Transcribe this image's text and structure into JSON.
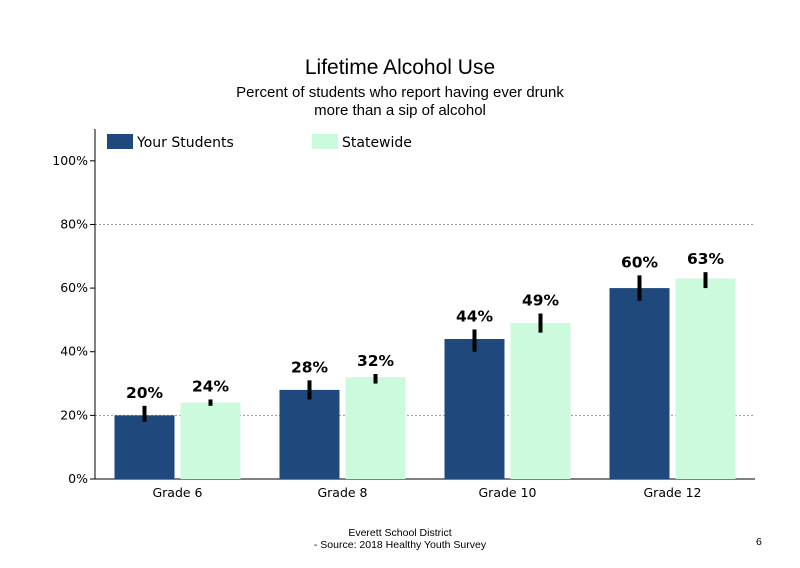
{
  "chart_data": {
    "type": "bar",
    "title": "Lifetime Alcohol Use",
    "subtitle": [
      "Percent of students who report having ever drunk",
      "more than a sip of alcohol"
    ],
    "categories": [
      "Grade 6",
      "Grade 8",
      "Grade 10",
      "Grade 12"
    ],
    "series": [
      {
        "name": "Your Students",
        "color": "#1f497d",
        "values": [
          20,
          28,
          44,
          60
        ],
        "labels": [
          "20%",
          "28%",
          "44%",
          "60%"
        ],
        "error_low": [
          18,
          25,
          40,
          56
        ],
        "error_high": [
          23,
          31,
          47,
          64
        ]
      },
      {
        "name": "Statewide",
        "color": "#ccfadc",
        "values": [
          24,
          32,
          49,
          63
        ],
        "labels": [
          "24%",
          "32%",
          "49%",
          "63%"
        ],
        "error_low": [
          23,
          30,
          46,
          60
        ],
        "error_high": [
          25,
          33,
          52,
          65
        ]
      }
    ],
    "ylim": [
      0,
      110
    ],
    "yticks": [
      0,
      20,
      40,
      60,
      80,
      100
    ],
    "ytick_labels": [
      "0%",
      "20%",
      "40%",
      "60%",
      "80%",
      "100%"
    ],
    "gridlines": [
      20,
      80
    ],
    "legend_position": "top-left",
    "xlabel": "",
    "ylabel": ""
  },
  "footer": {
    "line1": "Everett School District",
    "line2": "- Source: 2018 Healthy  Youth Survey",
    "page": "6"
  }
}
